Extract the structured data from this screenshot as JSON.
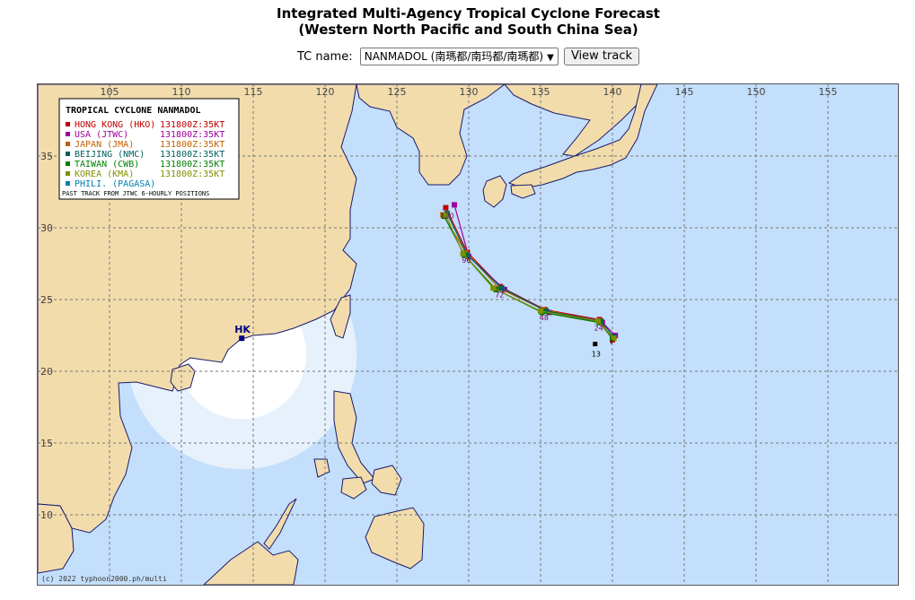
{
  "page": {
    "title_line1": "Integrated Multi-Agency Tropical Cyclone Forecast",
    "title_line2": "(Western North Pacific and South China Sea)"
  },
  "controls": {
    "tc_label": "TC name:",
    "tc_selected": "NANMADOL (南瑪都/南玛都/南瑪都)",
    "view_button": "View track"
  },
  "map": {
    "lon_labels": [
      "105",
      "110",
      "115",
      "120",
      "125",
      "130",
      "135",
      "140",
      "145",
      "150",
      "155"
    ],
    "lat_labels": [
      "35",
      "30",
      "25",
      "20",
      "15",
      "10"
    ],
    "colors": {
      "sea": "#c4dffb",
      "land": "#f2dcac",
      "coast": "#1a1a6e",
      "grid": "#777777"
    },
    "hk_label": "HK",
    "credit": "(c) 2022 typhoon2000.ph/multi",
    "current_position_label": "13",
    "legend": {
      "title": "TROPICAL CYCLONE NANMADOL",
      "entries": [
        {
          "agency": "HONG KONG (HKO)",
          "info": "131800Z:35KT",
          "color": "#c00000"
        },
        {
          "agency": "USA (JTWC)",
          "info": "131800Z:35KT",
          "color": "#a000a0"
        },
        {
          "agency": "JAPAN (JMA)",
          "info": "131800Z:35KT",
          "color": "#c06000"
        },
        {
          "agency": "BEIJING (NMC)",
          "info": "131800Z:35KT",
          "color": "#006060"
        },
        {
          "agency": "TAIWAN (CWB)",
          "info": "131800Z:35KT",
          "color": "#008000"
        },
        {
          "agency": "KOREA (KMA)",
          "info": "131800Z:35KT",
          "color": "#809000"
        },
        {
          "agency": "PHILI. (PAGASA)",
          "info": "",
          "color": "#0080b0"
        }
      ],
      "footer": "PAST TRACK FROM JTWC 6-HOURLY POSITIONS"
    },
    "forecast_hour_labels": [
      "24",
      "48",
      "72",
      "96",
      "120"
    ],
    "tracks": [
      {
        "agency": "HKO",
        "color": "#c00000",
        "points": [
          [
            140.0,
            22.2
          ],
          [
            139.1,
            23.6
          ],
          [
            135.3,
            24.3
          ],
          [
            132.2,
            25.9
          ],
          [
            129.9,
            28.3
          ],
          [
            128.4,
            31.4
          ]
        ]
      },
      {
        "agency": "JTWC",
        "color": "#a000a0",
        "points": [
          [
            140.2,
            22.5
          ],
          [
            139.3,
            23.4
          ],
          [
            135.6,
            24.1
          ],
          [
            132.5,
            25.7
          ],
          [
            130.0,
            28.0
          ],
          [
            129.0,
            31.6
          ]
        ]
      },
      {
        "agency": "JMA",
        "color": "#c06000",
        "points": [
          [
            140.0,
            22.3
          ],
          [
            139.0,
            23.5
          ],
          [
            135.2,
            24.3
          ],
          [
            132.1,
            25.8
          ],
          [
            129.8,
            28.3
          ],
          [
            128.2,
            30.9
          ]
        ]
      },
      {
        "agency": "NMC",
        "color": "#006060",
        "points": [
          [
            140.1,
            22.4
          ],
          [
            139.2,
            23.5
          ],
          [
            135.4,
            24.2
          ],
          [
            132.3,
            25.8
          ],
          [
            129.9,
            28.1
          ],
          [
            128.5,
            31.0
          ]
        ]
      },
      {
        "agency": "CWB",
        "color": "#008000",
        "points": [
          [
            140.0,
            22.3
          ],
          [
            139.1,
            23.4
          ],
          [
            135.1,
            24.1
          ],
          [
            131.9,
            25.7
          ],
          [
            129.7,
            28.1
          ],
          [
            128.3,
            30.8
          ]
        ]
      },
      {
        "agency": "KMA",
        "color": "#809000",
        "points": [
          [
            140.1,
            22.3
          ],
          [
            139.0,
            23.5
          ],
          [
            135.0,
            24.2
          ],
          [
            131.7,
            25.8
          ],
          [
            129.6,
            28.2
          ],
          [
            128.4,
            30.9
          ]
        ]
      }
    ],
    "past_track": [
      [
        139.9,
        21.9
      ],
      [
        140.0,
        22.2
      ]
    ],
    "current_position": [
      138.8,
      21.9
    ],
    "hong_kong": [
      114.2,
      22.3
    ]
  }
}
